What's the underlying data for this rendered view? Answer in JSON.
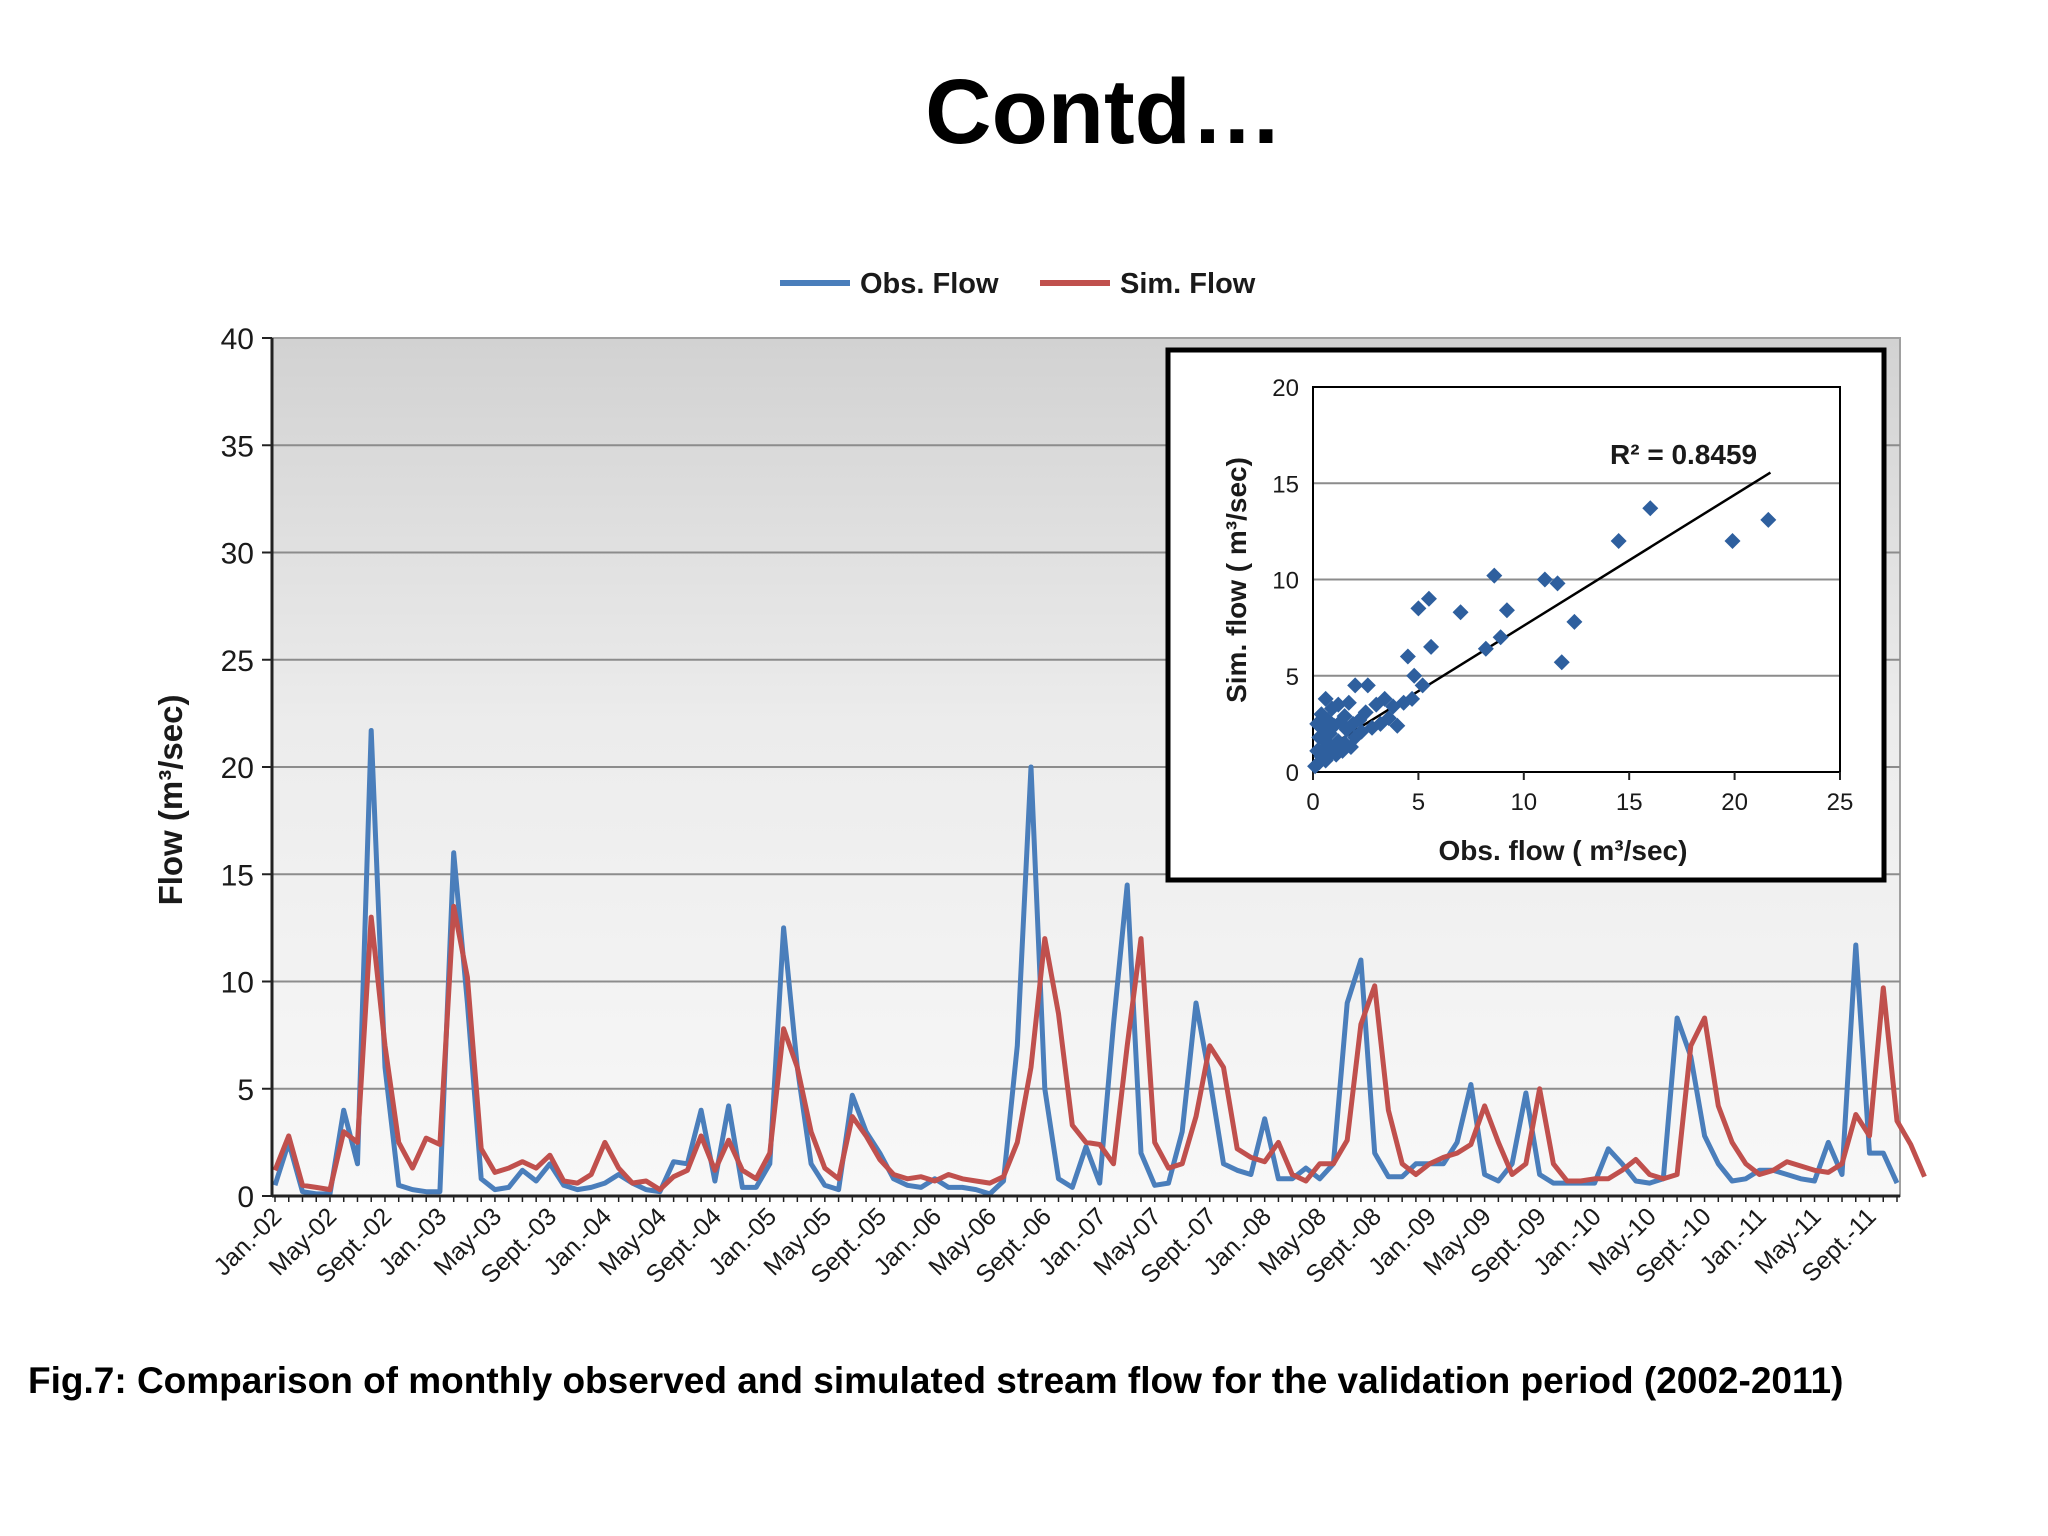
{
  "slide": {
    "title": "Contd…",
    "caption": "Fig.7: Comparison of monthly observed and simulated stream flow for the validation period (2002-2011)"
  },
  "colors": {
    "obs": "#4a7ebb",
    "sim": "#c0504d",
    "marker": "#2e5f9e"
  },
  "chart_data": [
    {
      "type": "line",
      "xlabel": "",
      "ylabel": "Flow (m³/sec)",
      "ylim": [
        0,
        40
      ],
      "yticks": [
        0,
        5,
        10,
        15,
        20,
        25,
        30,
        35,
        40
      ],
      "grid": true,
      "legend": "top-center",
      "x_tick_labels": [
        "Jan.-02",
        "May-02",
        "Sept.-02",
        "Jan.-03",
        "May-03",
        "Sept.-03",
        "Jan.-04",
        "May-04",
        "Sept.-04",
        "Jan.-05",
        "May-05",
        "Sept.-05",
        "Jan.-06",
        "May-06",
        "Sept.-06",
        "Jan.-07",
        "May-07",
        "Sept.-07",
        "Jan.-08",
        "May-08",
        "Sept.-08",
        "Jan.-09",
        "May-09",
        "Sept.-09",
        "Jan.-10",
        "May-10",
        "Sept.-10",
        "Jan.-11",
        "May-11",
        "Sept.-11"
      ],
      "series": [
        {
          "name": "Obs. Flow",
          "values": [
            0.5,
            2.5,
            0.2,
            0.1,
            0.1,
            4,
            1.5,
            21.7,
            6,
            0.5,
            0.3,
            0.2,
            0.2,
            16,
            9,
            0.8,
            0.3,
            0.4,
            1.2,
            0.7,
            1.5,
            0.5,
            0.3,
            0.4,
            0.6,
            1,
            0.6,
            0.3,
            0.2,
            1.6,
            1.5,
            4,
            0.7,
            4.2,
            0.4,
            0.4,
            1.5,
            12.5,
            6,
            1.5,
            0.5,
            0.3,
            4.7,
            3,
            2,
            0.8,
            0.5,
            0.4,
            0.8,
            0.4,
            0.4,
            0.3,
            0.1,
            0.7,
            7,
            20,
            5,
            0.8,
            0.4,
            2.3,
            0.6,
            8,
            14.5,
            2,
            0.5,
            0.6,
            3,
            9,
            5.5,
            1.5,
            1.2,
            1,
            3.6,
            0.8,
            0.8,
            1.3,
            0.8,
            1.5,
            9,
            11,
            2,
            0.9,
            0.9,
            1.5,
            1.5,
            1.5,
            2.5,
            5.2,
            1,
            0.7,
            1.5,
            4.8,
            1,
            0.6,
            0.6,
            0.6,
            0.6,
            2.2,
            1.5,
            0.7,
            0.6,
            0.8,
            8.3,
            6.5,
            2.8,
            1.5,
            0.7,
            0.8,
            1.2,
            1.2,
            1,
            0.8,
            0.7,
            2.5,
            1,
            11.7,
            2,
            2,
            0.6
          ]
        },
        {
          "name": "Sim. Flow",
          "values": [
            1.2,
            2.8,
            0.5,
            0.4,
            0.3,
            3,
            2.5,
            13,
            7,
            2.5,
            1.3,
            2.7,
            2.4,
            13.5,
            10.2,
            2.2,
            1.1,
            1.3,
            1.6,
            1.3,
            1.9,
            0.7,
            0.6,
            1,
            2.5,
            1.3,
            0.6,
            0.7,
            0.3,
            0.9,
            1.2,
            2.8,
            1.2,
            2.6,
            1.2,
            0.8,
            2,
            7.8,
            6,
            3,
            1.3,
            0.8,
            3.7,
            2.8,
            1.7,
            1,
            0.8,
            0.9,
            0.7,
            1,
            0.8,
            0.7,
            0.6,
            0.9,
            2.5,
            6,
            12,
            8.5,
            3.3,
            2.5,
            2.4,
            1.5,
            7,
            12,
            2.5,
            1.3,
            1.5,
            3.7,
            7,
            6,
            2.2,
            1.8,
            1.6,
            2.5,
            1,
            0.7,
            1.5,
            1.5,
            2.6,
            8,
            9.8,
            4,
            1.5,
            1,
            1.5,
            1.8,
            2,
            2.4,
            4.2,
            2.5,
            1,
            1.5,
            5,
            1.5,
            0.7,
            0.7,
            0.8,
            0.8,
            1.2,
            1.7,
            1,
            0.8,
            1,
            7,
            8.3,
            4.2,
            2.5,
            1.5,
            1,
            1.2,
            1.6,
            1.4,
            1.2,
            1.1,
            1.5,
            3.8,
            2.8,
            9.7,
            3.5,
            2.4,
            0.9
          ]
        }
      ]
    },
    {
      "type": "scatter",
      "xlabel": "Obs. flow ( m³/sec)",
      "ylabel": "Sim. flow ( m³/sec)",
      "xlim": [
        0,
        25
      ],
      "ylim": [
        0,
        20
      ],
      "xticks": [
        0,
        5,
        10,
        15,
        20,
        25
      ],
      "yticks": [
        0,
        5,
        10,
        15,
        20
      ],
      "grid": true,
      "annotation": "R² = 0.8459",
      "trendline": {
        "slope": 0.68,
        "intercept": 0.8,
        "x_range": [
          0,
          21.7
        ]
      },
      "points": [
        [
          0.1,
          0.3
        ],
        [
          0.2,
          1.1
        ],
        [
          0.2,
          2.5
        ],
        [
          0.3,
          0.5
        ],
        [
          0.3,
          1.8
        ],
        [
          0.4,
          0.8
        ],
        [
          0.4,
          3
        ],
        [
          0.5,
          1.2
        ],
        [
          0.5,
          2.2
        ],
        [
          0.6,
          0.6
        ],
        [
          0.6,
          3.8
        ],
        [
          0.7,
          1.5
        ],
        [
          0.7,
          2.7
        ],
        [
          0.8,
          0.9
        ],
        [
          0.8,
          2
        ],
        [
          0.9,
          3.3
        ],
        [
          1,
          1.3
        ],
        [
          1,
          2.4
        ],
        [
          1.1,
          0.9
        ],
        [
          1.2,
          1.6
        ],
        [
          1.2,
          3.5
        ],
        [
          1.3,
          2.6
        ],
        [
          1.4,
          1.1
        ],
        [
          1.5,
          1.5
        ],
        [
          1.5,
          2.9
        ],
        [
          1.6,
          2.2
        ],
        [
          1.7,
          3.6
        ],
        [
          1.8,
          1.3
        ],
        [
          1.9,
          2.5
        ],
        [
          2,
          1.8
        ],
        [
          2,
          4.5
        ],
        [
          2.2,
          2.7
        ],
        [
          2.3,
          2.1
        ],
        [
          2.5,
          3.1
        ],
        [
          2.6,
          4.5
        ],
        [
          2.8,
          2.3
        ],
        [
          3,
          3.5
        ],
        [
          3.2,
          2.5
        ],
        [
          3.4,
          3.8
        ],
        [
          3.6,
          2.8
        ],
        [
          3.8,
          3.4
        ],
        [
          4,
          2.4
        ],
        [
          4.3,
          3.6
        ],
        [
          4.5,
          6
        ],
        [
          4.7,
          3.8
        ],
        [
          4.8,
          5
        ],
        [
          5,
          8.5
        ],
        [
          5.2,
          4.5
        ],
        [
          5.5,
          9
        ],
        [
          5.6,
          6.5
        ],
        [
          7,
          8.3
        ],
        [
          8.2,
          6.4
        ],
        [
          8.6,
          10.2
        ],
        [
          8.9,
          7
        ],
        [
          9.2,
          8.4
        ],
        [
          11,
          10
        ],
        [
          11.6,
          9.8
        ],
        [
          11.8,
          5.7
        ],
        [
          12.4,
          7.8
        ],
        [
          14.5,
          12
        ],
        [
          16,
          13.7
        ],
        [
          19.9,
          12
        ],
        [
          21.6,
          13.1
        ]
      ]
    }
  ]
}
